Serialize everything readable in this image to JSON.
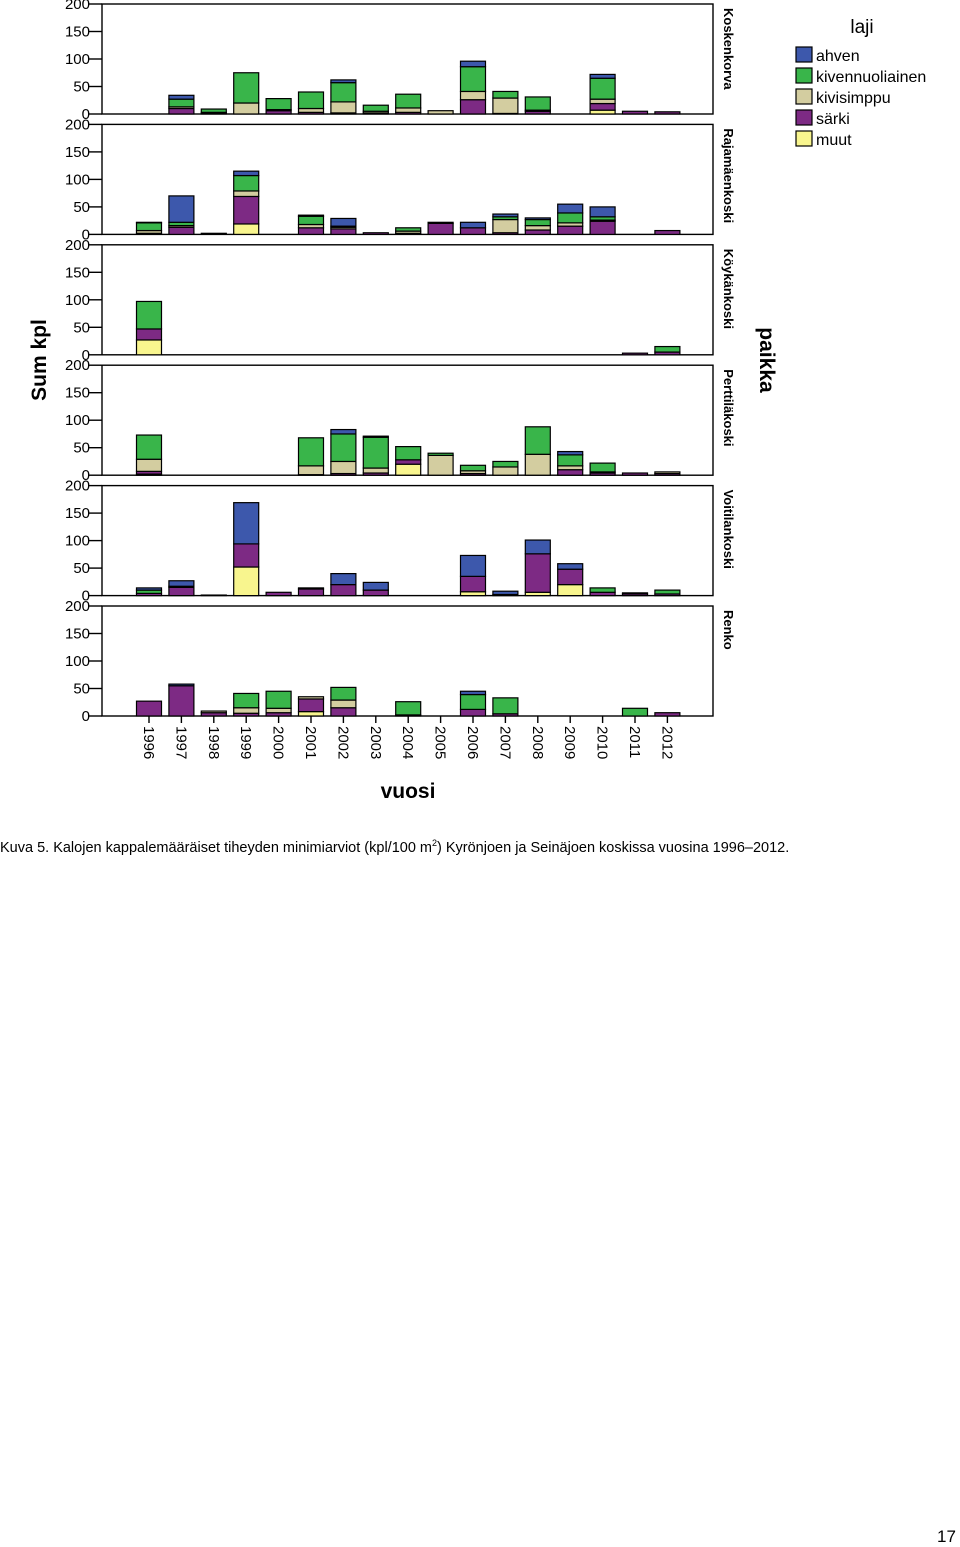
{
  "caption": {
    "prefix": "Kuva 5. Kalojen kappalemääräiset tiheyden minimiarviot (kpl/100 m",
    "superscript": "2",
    "suffix": ") Kyrönjoen ja Seinäjoen koskissa vuosina 1996–2012."
  },
  "page_number": "17",
  "chart_data": {
    "type": "bar",
    "stacked": true,
    "xlabel": "vuosi",
    "ylabel": "Sum kpl",
    "facet_title": "paikka",
    "legend_title": "laji",
    "legend_position": "top-right",
    "ylim": [
      0,
      200
    ],
    "y_ticks": [
      "0",
      "50",
      "100",
      "150",
      "200"
    ],
    "categories": [
      "1996",
      "1997",
      "1998",
      "1999",
      "2000",
      "2001",
      "2002",
      "2003",
      "2004",
      "2005",
      "2006",
      "2007",
      "2008",
      "2009",
      "2010",
      "2011",
      "2012"
    ],
    "species": [
      {
        "key": "ahven",
        "name": "ahven",
        "color": "#3d58ac"
      },
      {
        "key": "kivennuoliainen",
        "name": "kivennuoliainen",
        "color": "#39b54a"
      },
      {
        "key": "kivisimppu",
        "name": "kivisimppu",
        "color": "#d3cda0"
      },
      {
        "key": "sarki",
        "name": "särki",
        "color": "#7d2a84"
      },
      {
        "key": "muut",
        "name": "muut",
        "color": "#f8f58e"
      }
    ],
    "panels": [
      {
        "name": "Koskenkorva",
        "bars": [
          null,
          {
            "muut": 0,
            "sarki": 10,
            "kivisimppu": 3,
            "kivennuoliainen": 14,
            "ahven": 7
          },
          {
            "muut": 0,
            "sarki": 1,
            "kivisimppu": 2,
            "kivennuoliainen": 6,
            "ahven": 0
          },
          {
            "muut": 0,
            "sarki": 0,
            "kivisimppu": 20,
            "kivennuoliainen": 55,
            "ahven": 0
          },
          {
            "muut": 0,
            "sarki": 6,
            "kivisimppu": 2,
            "kivennuoliainen": 20,
            "ahven": 0
          },
          {
            "muut": 0,
            "sarki": 3,
            "kivisimppu": 7,
            "kivennuoliainen": 30,
            "ahven": 0
          },
          {
            "muut": 0,
            "sarki": 2,
            "kivisimppu": 20,
            "kivennuoliainen": 35,
            "ahven": 5
          },
          {
            "muut": 0,
            "sarki": 2,
            "kivisimppu": 3,
            "kivennuoliainen": 11,
            "ahven": 0
          },
          {
            "muut": 0,
            "sarki": 3,
            "kivisimppu": 8,
            "kivennuoliainen": 25,
            "ahven": 0
          },
          {
            "muut": 0,
            "sarki": 0,
            "kivisimppu": 6,
            "kivennuoliainen": 0,
            "ahven": 0
          },
          {
            "muut": 0,
            "sarki": 26,
            "kivisimppu": 15,
            "kivennuoliainen": 45,
            "ahven": 10
          },
          {
            "muut": 0,
            "sarki": 1,
            "kivisimppu": 28,
            "kivennuoliainen": 12,
            "ahven": 0
          },
          {
            "muut": 0,
            "sarki": 5,
            "kivisimppu": 2,
            "kivennuoliainen": 24,
            "ahven": 0
          },
          null,
          {
            "muut": 7,
            "sarki": 12,
            "kivisimppu": 8,
            "kivennuoliainen": 38,
            "ahven": 7
          },
          {
            "muut": 0,
            "sarki": 5,
            "kivisimppu": 0,
            "kivennuoliainen": 0,
            "ahven": 0
          },
          {
            "muut": 0,
            "sarki": 4,
            "kivisimppu": 0,
            "kivennuoliainen": 0,
            "ahven": 0
          }
        ]
      },
      {
        "name": "Rajamäenkoski",
        "bars": [
          {
            "muut": 0,
            "sarki": 2,
            "kivisimppu": 5,
            "kivennuoliainen": 14,
            "ahven": 1
          },
          {
            "muut": 0,
            "sarki": 13,
            "kivisimppu": 3,
            "kivennuoliainen": 6,
            "ahven": 48
          },
          {
            "muut": 0,
            "sarki": 2,
            "kivisimppu": 0,
            "kivennuoliainen": 0,
            "ahven": 0
          },
          {
            "muut": 19,
            "sarki": 50,
            "kivisimppu": 10,
            "kivennuoliainen": 28,
            "ahven": 8
          },
          null,
          {
            "muut": 0,
            "sarki": 12,
            "kivisimppu": 6,
            "kivennuoliainen": 15,
            "ahven": 2
          },
          {
            "muut": 0,
            "sarki": 10,
            "kivisimppu": 3,
            "kivennuoliainen": 2,
            "ahven": 14
          },
          {
            "muut": 0,
            "sarki": 3,
            "kivisimppu": 0,
            "kivennuoliainen": 0,
            "ahven": 0
          },
          {
            "muut": 0,
            "sarki": 2,
            "kivisimppu": 4,
            "kivennuoliainen": 6,
            "ahven": 0
          },
          {
            "muut": 0,
            "sarki": 20,
            "kivisimppu": 2,
            "kivennuoliainen": 0,
            "ahven": 0
          },
          {
            "muut": 0,
            "sarki": 12,
            "kivisimppu": 0,
            "kivennuoliainen": 0,
            "ahven": 10
          },
          {
            "muut": 0,
            "sarki": 3,
            "kivisimppu": 24,
            "kivennuoliainen": 5,
            "ahven": 5
          },
          {
            "muut": 0,
            "sarki": 8,
            "kivisimppu": 8,
            "kivennuoliainen": 11,
            "ahven": 3
          },
          {
            "muut": 0,
            "sarki": 15,
            "kivisimppu": 6,
            "kivennuoliainen": 18,
            "ahven": 16
          },
          {
            "muut": 0,
            "sarki": 24,
            "kivisimppu": 2,
            "kivennuoliainen": 6,
            "ahven": 18
          },
          null,
          {
            "muut": 0,
            "sarki": 7,
            "kivisimppu": 0,
            "kivennuoliainen": 0,
            "ahven": 0
          }
        ]
      },
      {
        "name": "Köykänkoski",
        "bars": [
          {
            "muut": 27,
            "sarki": 20,
            "kivisimppu": 0,
            "kivennuoliainen": 50,
            "ahven": 0
          },
          null,
          null,
          null,
          null,
          null,
          null,
          null,
          null,
          null,
          null,
          null,
          null,
          null,
          null,
          {
            "muut": 0,
            "sarki": 3,
            "kivisimppu": 0,
            "kivennuoliainen": 0,
            "ahven": 0
          },
          {
            "muut": 0,
            "sarki": 5,
            "kivisimppu": 0,
            "kivennuoliainen": 10,
            "ahven": 0
          }
        ]
      },
      {
        "name": "Perttiläkoski",
        "bars": [
          {
            "muut": 2,
            "sarki": 5,
            "kivisimppu": 22,
            "kivennuoliainen": 44,
            "ahven": 0
          },
          null,
          null,
          null,
          null,
          {
            "muut": 0,
            "sarki": 1,
            "kivisimppu": 16,
            "kivennuoliainen": 51,
            "ahven": 0
          },
          {
            "muut": 0,
            "sarki": 3,
            "kivisimppu": 22,
            "kivennuoliainen": 50,
            "ahven": 8
          },
          {
            "muut": 0,
            "sarki": 4,
            "kivisimppu": 9,
            "kivennuoliainen": 56,
            "ahven": 2
          },
          {
            "muut": 20,
            "sarki": 8,
            "kivisimppu": 0,
            "kivennuoliainen": 24,
            "ahven": 0
          },
          {
            "muut": 0,
            "sarki": 0,
            "kivisimppu": 36,
            "kivennuoliainen": 4,
            "ahven": 0
          },
          {
            "muut": 0,
            "sarki": 3,
            "kivisimppu": 5,
            "kivennuoliainen": 10,
            "ahven": 0
          },
          {
            "muut": 0,
            "sarki": 0,
            "kivisimppu": 15,
            "kivennuoliainen": 10,
            "ahven": 0
          },
          {
            "muut": 0,
            "sarki": 0,
            "kivisimppu": 38,
            "kivennuoliainen": 50,
            "ahven": 0
          },
          {
            "muut": 0,
            "sarki": 10,
            "kivisimppu": 7,
            "kivennuoliainen": 20,
            "ahven": 6
          },
          {
            "muut": 0,
            "sarki": 4,
            "kivisimppu": 2,
            "kivennuoliainen": 16,
            "ahven": 0
          },
          {
            "muut": 0,
            "sarki": 4,
            "kivisimppu": 0,
            "kivennuoliainen": 0,
            "ahven": 0
          },
          {
            "muut": 0,
            "sarki": 3,
            "kivisimppu": 3,
            "kivennuoliainen": 0,
            "ahven": 0
          }
        ]
      },
      {
        "name": "Voitilankoski",
        "bars": [
          {
            "muut": 0,
            "sarki": 4,
            "kivisimppu": 0,
            "kivennuoliainen": 6,
            "ahven": 4
          },
          {
            "muut": 0,
            "sarki": 15,
            "kivisimppu": 0,
            "kivennuoliainen": 2,
            "ahven": 10
          },
          {
            "muut": 0,
            "sarki": 1,
            "kivisimppu": 0,
            "kivennuoliainen": 0,
            "ahven": 0
          },
          {
            "muut": 52,
            "sarki": 42,
            "kivisimppu": 0,
            "kivennuoliainen": 0,
            "ahven": 75
          },
          {
            "muut": 0,
            "sarki": 6,
            "kivisimppu": 0,
            "kivennuoliainen": 0,
            "ahven": 0
          },
          {
            "muut": 0,
            "sarki": 12,
            "kivisimppu": 0,
            "kivennuoliainen": 0,
            "ahven": 2
          },
          {
            "muut": 0,
            "sarki": 20,
            "kivisimppu": 0,
            "kivennuoliainen": 0,
            "ahven": 20
          },
          {
            "muut": 0,
            "sarki": 10,
            "kivisimppu": 0,
            "kivennuoliainen": 0,
            "ahven": 14
          },
          null,
          null,
          {
            "muut": 7,
            "sarki": 28,
            "kivisimppu": 0,
            "kivennuoliainen": 0,
            "ahven": 38
          },
          {
            "muut": 0,
            "sarki": 2,
            "kivisimppu": 0,
            "kivennuoliainen": 0,
            "ahven": 6
          },
          {
            "muut": 6,
            "sarki": 70,
            "kivisimppu": 0,
            "kivennuoliainen": 0,
            "ahven": 25
          },
          {
            "muut": 20,
            "sarki": 28,
            "kivisimppu": 0,
            "kivennuoliainen": 0,
            "ahven": 10
          },
          {
            "muut": 0,
            "sarki": 6,
            "kivisimppu": 0,
            "kivennuoliainen": 8,
            "ahven": 0
          },
          {
            "muut": 0,
            "sarki": 3,
            "kivisimppu": 0,
            "kivennuoliainen": 2,
            "ahven": 0
          },
          {
            "muut": 0,
            "sarki": 3,
            "kivisimppu": 0,
            "kivennuoliainen": 7,
            "ahven": 0
          }
        ]
      },
      {
        "name": "Renko",
        "bars": [
          {
            "muut": 0,
            "sarki": 27,
            "kivisimppu": 0,
            "kivennuoliainen": 0,
            "ahven": 0
          },
          {
            "muut": 0,
            "sarki": 55,
            "kivisimppu": 0,
            "kivennuoliainen": 0,
            "ahven": 3
          },
          {
            "muut": 0,
            "sarki": 6,
            "kivisimppu": 3,
            "kivennuoliainen": 0,
            "ahven": 0
          },
          {
            "muut": 0,
            "sarki": 5,
            "kivisimppu": 10,
            "kivennuoliainen": 26,
            "ahven": 0
          },
          {
            "muut": 0,
            "sarki": 6,
            "kivisimppu": 8,
            "kivennuoliainen": 31,
            "ahven": 0
          },
          {
            "muut": 8,
            "sarki": 23,
            "kivisimppu": 4,
            "kivennuoliainen": 0,
            "ahven": 0
          },
          {
            "muut": 0,
            "sarki": 15,
            "kivisimppu": 14,
            "kivennuoliainen": 23,
            "ahven": 0
          },
          null,
          {
            "muut": 0,
            "sarki": 2,
            "kivisimppu": 0,
            "kivennuoliainen": 24,
            "ahven": 0
          },
          null,
          {
            "muut": 0,
            "sarki": 12,
            "kivisimppu": 0,
            "kivennuoliainen": 27,
            "ahven": 6
          },
          {
            "muut": 0,
            "sarki": 4,
            "kivisimppu": 0,
            "kivennuoliainen": 29,
            "ahven": 0
          },
          null,
          null,
          null,
          {
            "muut": 0,
            "sarki": 0,
            "kivisimppu": 0,
            "kivennuoliainen": 14,
            "ahven": 0
          },
          {
            "muut": 0,
            "sarki": 6,
            "kivisimppu": 0,
            "kivennuoliainen": 0,
            "ahven": 0
          }
        ]
      }
    ]
  }
}
